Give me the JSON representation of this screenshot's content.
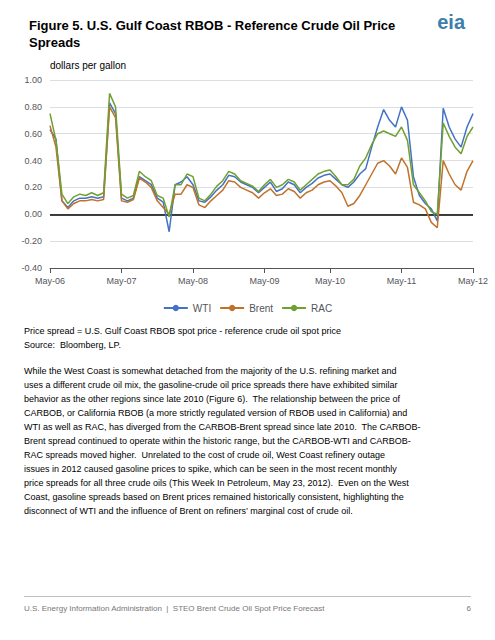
{
  "chart_data": {
    "type": "line",
    "title": "Figure 5. U.S. Gulf Coast RBOB - Reference Crude Oil Price Spreads",
    "y_label": "dollars per gallon",
    "categories": [
      "May-06",
      null,
      null,
      null,
      null,
      null,
      null,
      null,
      null,
      null,
      null,
      null,
      "May-07",
      null,
      null,
      null,
      null,
      null,
      null,
      null,
      null,
      null,
      null,
      null,
      "May-08",
      null,
      null,
      null,
      null,
      null,
      null,
      null,
      null,
      null,
      null,
      null,
      "May-09",
      null,
      null,
      null,
      null,
      null,
      null,
      null,
      null,
      null,
      null,
      "May-10",
      null,
      null,
      null,
      null,
      null,
      null,
      null,
      null,
      null,
      null,
      null,
      "May-11",
      null,
      null,
      null,
      null,
      null,
      null,
      null,
      null,
      null,
      null,
      null,
      "May-12"
    ],
    "series": [
      {
        "name": "WTI",
        "color": "#4472C4",
        "values": [
          0.63,
          0.56,
          0.1,
          0.05,
          0.1,
          0.12,
          0.12,
          0.13,
          0.12,
          0.13,
          0.83,
          0.75,
          0.12,
          0.1,
          0.12,
          0.28,
          0.25,
          0.22,
          0.12,
          0.09,
          -0.13,
          0.22,
          0.24,
          0.28,
          0.22,
          0.1,
          0.09,
          0.13,
          0.18,
          0.22,
          0.29,
          0.28,
          0.24,
          0.22,
          0.2,
          0.16,
          0.2,
          0.24,
          0.17,
          0.19,
          0.24,
          0.22,
          0.16,
          0.2,
          0.23,
          0.27,
          0.29,
          0.3,
          0.26,
          0.22,
          0.2,
          0.24,
          0.3,
          0.34,
          0.5,
          0.65,
          0.78,
          0.7,
          0.65,
          0.8,
          0.7,
          0.28,
          0.14,
          0.08,
          0.04,
          -0.05,
          0.79,
          0.65,
          0.56,
          0.5,
          0.65,
          0.75
        ]
      },
      {
        "name": "Brent",
        "color": "#C0722A",
        "values": [
          0.66,
          0.5,
          0.1,
          0.04,
          0.08,
          0.1,
          0.1,
          0.11,
          0.1,
          0.11,
          0.8,
          0.72,
          0.1,
          0.09,
          0.11,
          0.27,
          0.24,
          0.2,
          0.1,
          0.05,
          0.0,
          0.15,
          0.15,
          0.22,
          0.2,
          0.07,
          0.05,
          0.1,
          0.14,
          0.18,
          0.25,
          0.24,
          0.2,
          0.18,
          0.16,
          0.12,
          0.16,
          0.19,
          0.14,
          0.15,
          0.19,
          0.17,
          0.12,
          0.16,
          0.18,
          0.22,
          0.24,
          0.25,
          0.21,
          0.16,
          0.06,
          0.08,
          0.14,
          0.22,
          0.3,
          0.38,
          0.4,
          0.36,
          0.3,
          0.42,
          0.35,
          0.09,
          0.07,
          0.04,
          -0.06,
          -0.1,
          0.4,
          0.3,
          0.22,
          0.18,
          0.32,
          0.4
        ]
      },
      {
        "name": "RAC",
        "color": "#70A030",
        "values": [
          0.75,
          0.55,
          0.15,
          0.08,
          0.13,
          0.15,
          0.14,
          0.16,
          0.14,
          0.16,
          0.9,
          0.8,
          0.15,
          0.12,
          0.14,
          0.32,
          0.28,
          0.25,
          0.14,
          0.12,
          -0.02,
          0.22,
          0.22,
          0.3,
          0.28,
          0.12,
          0.1,
          0.15,
          0.21,
          0.25,
          0.32,
          0.3,
          0.25,
          0.23,
          0.21,
          0.17,
          0.22,
          0.26,
          0.2,
          0.22,
          0.26,
          0.24,
          0.18,
          0.22,
          0.26,
          0.3,
          0.32,
          0.33,
          0.28,
          0.22,
          0.22,
          0.26,
          0.36,
          0.42,
          0.52,
          0.6,
          0.62,
          0.6,
          0.58,
          0.65,
          0.55,
          0.22,
          0.16,
          0.1,
          0.02,
          0.0,
          0.68,
          0.58,
          0.5,
          0.45,
          0.58,
          0.65
        ]
      }
    ],
    "ylim": [
      -0.4,
      1.0
    ],
    "yticks": [
      {
        "value": -0.4,
        "label": "-0.40"
      },
      {
        "value": -0.2,
        "label": "-0.20"
      },
      {
        "value": 0,
        "label": "0.00"
      },
      {
        "value": 0.2,
        "label": "0.20"
      },
      {
        "value": 0.4,
        "label": "0.40"
      },
      {
        "value": 0.6,
        "label": "0.60"
      },
      {
        "value": 0.8,
        "label": "0.80"
      },
      {
        "value": 1.0,
        "label": "1.00"
      }
    ],
    "grid": true,
    "legend": "bottom",
    "annotations": [
      "eia",
      "Price spread = U.S. Gulf Coast RBOB spot price - reference crude oil spot price",
      "Source:  Bloomberg, LP.",
      "While the West Coast is somewhat detached from the majority of the U.S. refining market and",
      "uses a different crude oil mix, the gasoline-crude oil price spreads there have exhibited similar",
      "behavior as the other regions since late 2010 (Figure 6).  The relationship between the price of",
      "CARBOB, or California RBOB (a more strictly regulated version of RBOB used in California) and",
      "WTI as well as RAC, has diverged from the CARBOB-Brent spread since late 2010.  The CARBOB-",
      "Brent spread continued to operate within the historic range, but the CARBOB-WTI and CARBOB-",
      "RAC spreads moved higher.  Unrelated to the cost of crude oil, West Coast refinery outage",
      "issues in 2012 caused gasoline prices to spike, which can be seen in the most recent monthly",
      "price spreads for all three crude oils (This Week In Petroleum, May 23, 2012).  Even on the West",
      "Coast, gasoline spreads based on Brent prices remained historically consistent, highlighting the",
      "disconnect of WTI and the influence of Brent on refiners’ marginal cost of crude oil.",
      "U.S. Energy Information Administration  |  STEO Brent Crude Oil Spot Price Forecast",
      "6"
    ]
  }
}
